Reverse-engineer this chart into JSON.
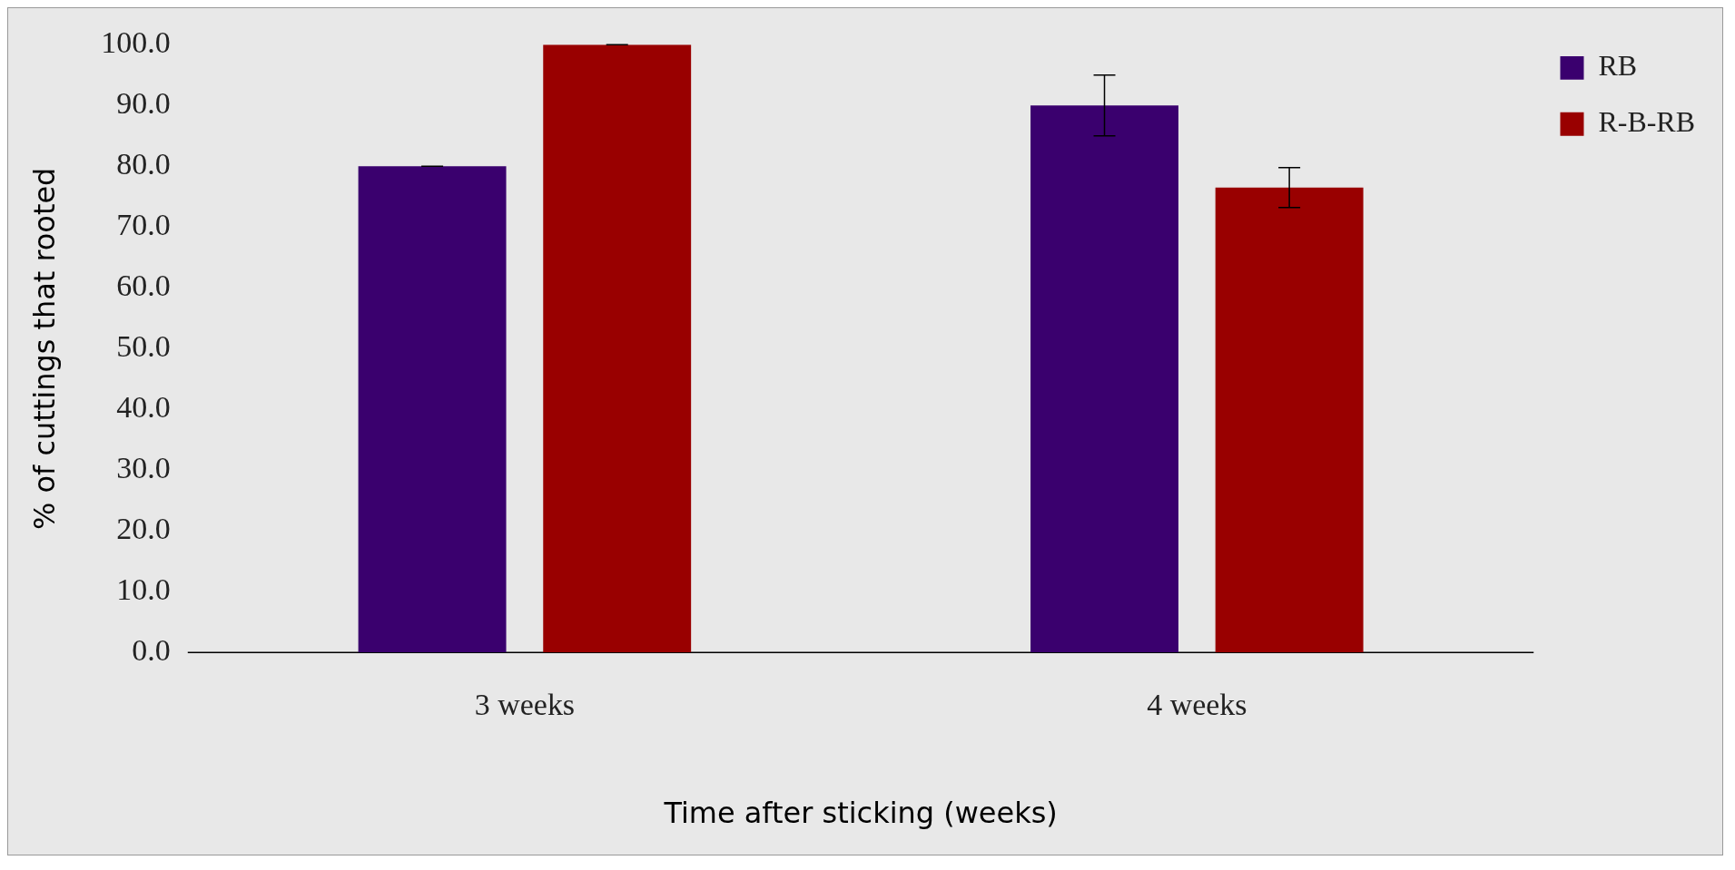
{
  "chart_data": {
    "type": "bar",
    "xlabel": "Time after sticking (weeks)",
    "ylabel": "% of cuttings that rooted",
    "categories": [
      "3 weeks",
      "4 weeks"
    ],
    "series": [
      {
        "name": "RB",
        "color": "#3a006e",
        "values": [
          80,
          90
        ],
        "errors": [
          0,
          5
        ]
      },
      {
        "name": "R-B-RB",
        "color": "#990000",
        "values": [
          100,
          76.5
        ],
        "errors": [
          0,
          3.3
        ]
      }
    ],
    "ylim": [
      0,
      100
    ],
    "yticks": [
      {
        "value": 0,
        "label": "0.0"
      },
      {
        "value": 10,
        "label": "10.0"
      },
      {
        "value": 20,
        "label": "20.0"
      },
      {
        "value": 30,
        "label": "30.0"
      },
      {
        "value": 40,
        "label": "40.0"
      },
      {
        "value": 50,
        "label": "50.0"
      },
      {
        "value": 60,
        "label": "60.0"
      },
      {
        "value": 70,
        "label": "70.0"
      },
      {
        "value": 80,
        "label": "80.0"
      },
      {
        "value": 90,
        "label": "90.0"
      },
      {
        "value": 100,
        "label": "100.0"
      }
    ],
    "grid": false,
    "legend": "top right"
  }
}
